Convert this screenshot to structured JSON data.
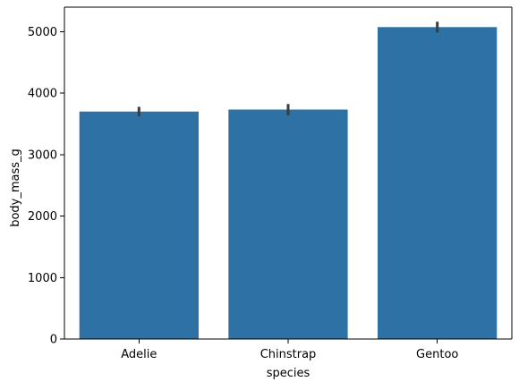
{
  "chart_data": {
    "type": "bar",
    "categories": [
      "Adelie",
      "Chinstrap",
      "Gentoo"
    ],
    "values": [
      3701,
      3733,
      5076
    ],
    "error_bars": [
      {
        "low": 3626,
        "high": 3778
      },
      {
        "low": 3637,
        "high": 3823
      },
      {
        "low": 4986,
        "high": 5163
      }
    ],
    "xlabel": "species",
    "ylabel": "body_mass_g",
    "ylim": [
      0,
      5400
    ],
    "yticks": [
      0,
      1000,
      2000,
      3000,
      4000,
      5000
    ],
    "grid": false,
    "colors": {
      "bar": "#2e72a5",
      "error_bar": "#3c3c3c",
      "axis": "#000000"
    }
  }
}
